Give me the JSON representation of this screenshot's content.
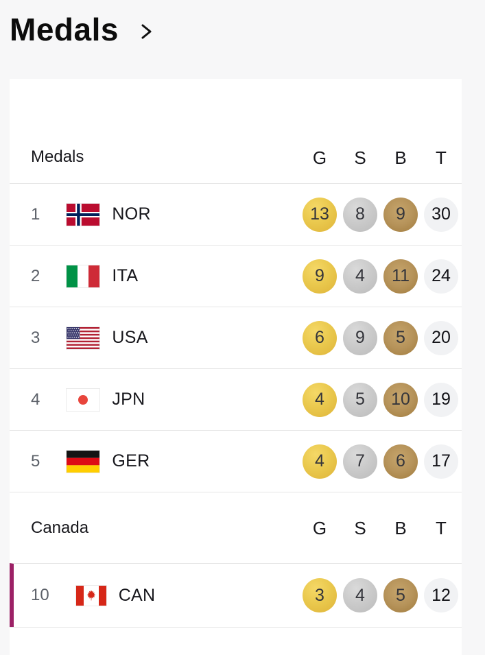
{
  "page": {
    "title": "Medals"
  },
  "table": {
    "header": {
      "label": "Medals",
      "columns": [
        "G",
        "S",
        "B",
        "T"
      ]
    },
    "rows": [
      {
        "rank": "1",
        "noc": "NOR",
        "gold": "13",
        "silver": "8",
        "bronze": "9",
        "total": "30"
      },
      {
        "rank": "2",
        "noc": "ITA",
        "gold": "9",
        "silver": "4",
        "bronze": "11",
        "total": "24"
      },
      {
        "rank": "3",
        "noc": "USA",
        "gold": "6",
        "silver": "9",
        "bronze": "5",
        "total": "20"
      },
      {
        "rank": "4",
        "noc": "JPN",
        "gold": "4",
        "silver": "5",
        "bronze": "10",
        "total": "19"
      },
      {
        "rank": "5",
        "noc": "GER",
        "gold": "4",
        "silver": "7",
        "bronze": "6",
        "total": "17"
      }
    ],
    "canada_section": {
      "label": "Canada",
      "columns": [
        "G",
        "S",
        "B",
        "T"
      ],
      "rows": [
        {
          "rank": "10",
          "noc": "CAN",
          "gold": "3",
          "silver": "4",
          "bronze": "5",
          "total": "12",
          "highlighted": true
        }
      ]
    }
  },
  "colors": {
    "highlight_accent": "#9c2166",
    "gold": "#e8c245",
    "silver": "#c6c6c6",
    "bronze": "#b08c4e",
    "total_bg": "#f1f2f4",
    "page_bg": "#f7f7f8",
    "card_bg": "#ffffff",
    "divider": "#e6e6e6"
  }
}
